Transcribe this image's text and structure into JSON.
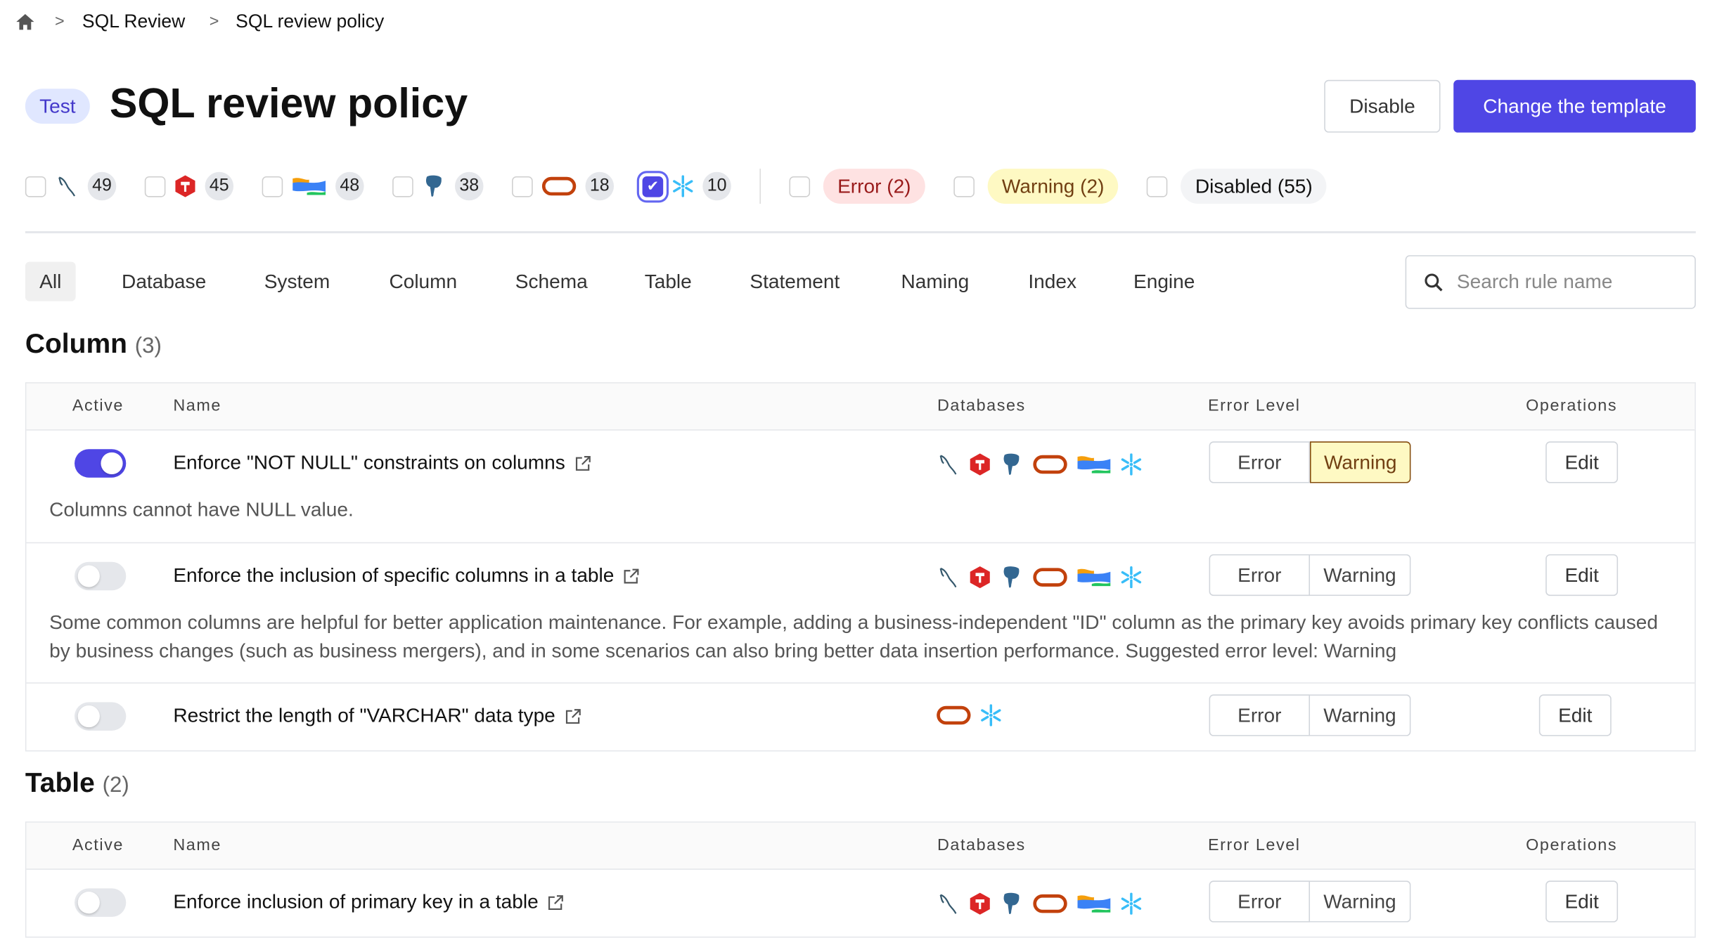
{
  "breadcrumb": {
    "home_icon": "home-icon",
    "items": [
      "SQL Review",
      "SQL review policy"
    ]
  },
  "header": {
    "env_badge": "Test",
    "title": "SQL review policy",
    "disable_label": "Disable",
    "change_template_label": "Change the template",
    "primary_color": "#4f46e5"
  },
  "engine_filters": [
    {
      "engine": "mysql",
      "count": "49",
      "checked": false
    },
    {
      "engine": "tidb",
      "count": "45",
      "checked": false
    },
    {
      "engine": "oceanbase",
      "count": "48",
      "checked": false
    },
    {
      "engine": "postgres",
      "count": "38",
      "checked": false
    },
    {
      "engine": "oracle",
      "count": "18",
      "checked": false
    },
    {
      "engine": "snowflake",
      "count": "10",
      "checked": true
    }
  ],
  "level_filters": [
    {
      "label": "Error (2)",
      "bg": "#fee2e2",
      "color": "#991b1b"
    },
    {
      "label": "Warning (2)",
      "bg": "#fef9c3",
      "color": "#713f12"
    },
    {
      "label": "Disabled (55)",
      "bg": "#f3f4f6",
      "color": "#111"
    }
  ],
  "tabs": [
    "All",
    "Database",
    "System",
    "Column",
    "Schema",
    "Table",
    "Statement",
    "Naming",
    "Index",
    "Engine"
  ],
  "selected_tab": "All",
  "search": {
    "placeholder": "Search rule name",
    "value": ""
  },
  "columns": {
    "active": "Active",
    "name": "Name",
    "databases": "Databases",
    "error_level": "Error Level",
    "operations": "Operations"
  },
  "level_options": {
    "error": "Error",
    "warning": "Warning"
  },
  "edit_label": "Edit",
  "sections": [
    {
      "title": "Column",
      "count": "(3)",
      "rules": [
        {
          "name": "Enforce \"NOT NULL\" constraints on columns",
          "active": true,
          "level": "warning",
          "dbs": [
            "mysql",
            "tidb",
            "postgres",
            "oracle",
            "oceanbase",
            "snowflake"
          ],
          "description": "Columns cannot have NULL value."
        },
        {
          "name": "Enforce the inclusion of specific columns in a table",
          "active": false,
          "level": "",
          "dbs": [
            "mysql",
            "tidb",
            "postgres",
            "oracle",
            "oceanbase",
            "snowflake"
          ],
          "description": "Some common columns are helpful for better application maintenance. For example, adding a business-independent \"ID\" column as the primary key avoids primary key conflicts caused by business changes (such as business mergers), and in some scenarios can also bring better data insertion performance. Suggested error level: Warning"
        },
        {
          "name": "Restrict the length of \"VARCHAR\" data type",
          "active": false,
          "level": "",
          "dbs": [
            "oracle",
            "snowflake"
          ],
          "description": ""
        }
      ]
    },
    {
      "title": "Table",
      "count": "(2)",
      "rules": [
        {
          "name": "Enforce inclusion of primary key in a table",
          "active": false,
          "level": "",
          "dbs": [
            "mysql",
            "tidb",
            "postgres",
            "oracle",
            "oceanbase",
            "snowflake"
          ],
          "description": ""
        }
      ]
    }
  ]
}
